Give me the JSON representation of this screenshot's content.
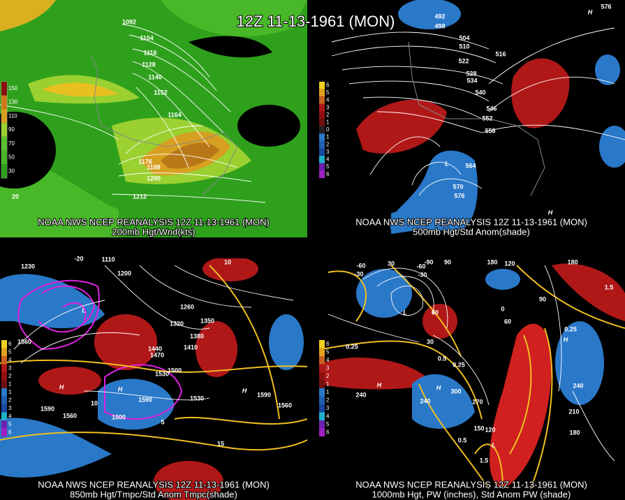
{
  "title": "12Z 11-13-1961 (MON)",
  "panels": [
    {
      "caption": [
        "NOAA NWS NCEP REANALYSIS 12Z 11-13-1961 (MON)",
        "200mb Hgt/Wnd(kts)"
      ],
      "legend": [
        "150",
        "130",
        "110",
        "90",
        "70",
        "50",
        "30"
      ],
      "labels": [
        "1092",
        "1104",
        "1116",
        "1128",
        "1140",
        "1152",
        "1164",
        "1176",
        "1188",
        "1200",
        "1212",
        "20"
      ]
    },
    {
      "caption": [
        "NOAA NWS NCEP REANALYSIS 12Z 11-13-1961 (MON)",
        "500mb Hgt/Std Anom(shade)"
      ],
      "legend": [
        "6",
        "5",
        "4",
        "3",
        "2",
        "1",
        "0",
        "1",
        "2",
        "3",
        "4",
        "5",
        "6"
      ],
      "labels": [
        "492",
        "498",
        "504",
        "510",
        "516",
        "522",
        "528",
        "534",
        "540",
        "546",
        "552",
        "558",
        "564",
        "570",
        "576",
        "576",
        "H",
        "L",
        "H"
      ]
    },
    {
      "caption": [
        "NOAA NWS NCEP REANALYSIS 12Z 11-13-1961 (MON)",
        "850mb Hgt/Tmpc/Std Anom Tmpc(shade)"
      ],
      "legend": [
        "6",
        "5",
        "4",
        "3",
        "2",
        "1",
        "1",
        "2",
        "3",
        "4",
        "5",
        "6"
      ],
      "labels": [
        "1230",
        "1110",
        "1200",
        "1260",
        "1320",
        "1350",
        "1380",
        "1410",
        "1440",
        "1470",
        "1500",
        "1530",
        "1560",
        "1590",
        "1560",
        "1590",
        "1500",
        "1530",
        "1590",
        "1560",
        "-20",
        "10",
        "10",
        "5",
        "15",
        "H",
        "H",
        "H",
        "L"
      ]
    },
    {
      "caption": [
        "NOAA NWS NCEP REANALYSIS 12Z 11-13-1961 (MON)",
        "1000mb Hgt, PW (inches), Std Anom PW (shade)"
      ],
      "legend": [
        "6",
        "5",
        "4",
        "3",
        "2",
        "1",
        "1",
        "2",
        "3",
        "4",
        "5",
        "6"
      ],
      "labels": [
        "-60",
        "-30",
        "30",
        "-90",
        "-60",
        "-30",
        "90",
        "180",
        "120",
        "180",
        "30",
        "60",
        "0",
        "60",
        "90",
        "1.5",
        "0.25",
        "0.25",
        "0.5",
        "0.25",
        "240",
        "240",
        "300",
        "270",
        "210",
        "240",
        "180",
        "150",
        "120",
        "0.5",
        "1.5",
        "H",
        "H",
        "H",
        "L",
        "L"
      ]
    }
  ]
}
